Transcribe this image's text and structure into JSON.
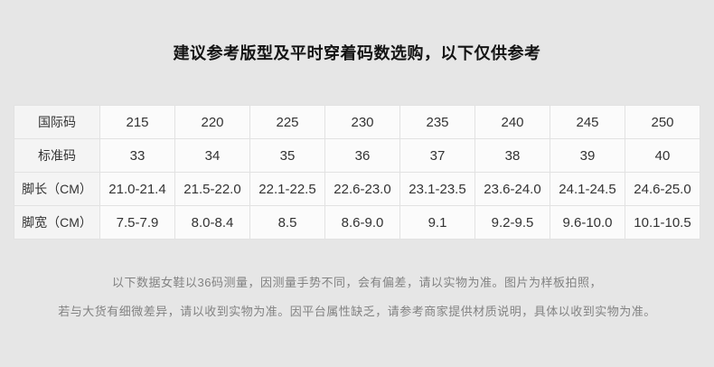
{
  "page": {
    "title": "建议参考版型及平时穿着码数选购，以下仅供参考",
    "background_color": "#e6e6e6"
  },
  "size_table": {
    "rows": [
      {
        "label": "国际码",
        "values": [
          "215",
          "220",
          "225",
          "230",
          "235",
          "240",
          "245",
          "250"
        ]
      },
      {
        "label": "标准码",
        "values": [
          "33",
          "34",
          "35",
          "36",
          "37",
          "38",
          "39",
          "40"
        ]
      },
      {
        "label": "脚长（CM）",
        "values": [
          "21.0-21.4",
          "21.5-22.0",
          "22.1-22.5",
          "22.6-23.0",
          "23.1-23.5",
          "23.6-24.0",
          "24.1-24.5",
          "24.6-25.0"
        ]
      },
      {
        "label": "脚宽（CM）",
        "values": [
          "7.5-7.9",
          "8.0-8.4",
          "8.5",
          "8.6-9.0",
          "9.1",
          "9.2-9.5",
          "9.6-10.0",
          "10.1-10.5"
        ]
      }
    ]
  },
  "disclaimer": {
    "line1": "以下数据女鞋以36码测量，因测量手势不同，会有偏差，请以实物为准。图片为样板拍照，",
    "line2": "若与大货有细微差异，请以收到实物为准。因平台属性缺乏，请参考商家提供材质说明，具体以收到实物为准。"
  }
}
